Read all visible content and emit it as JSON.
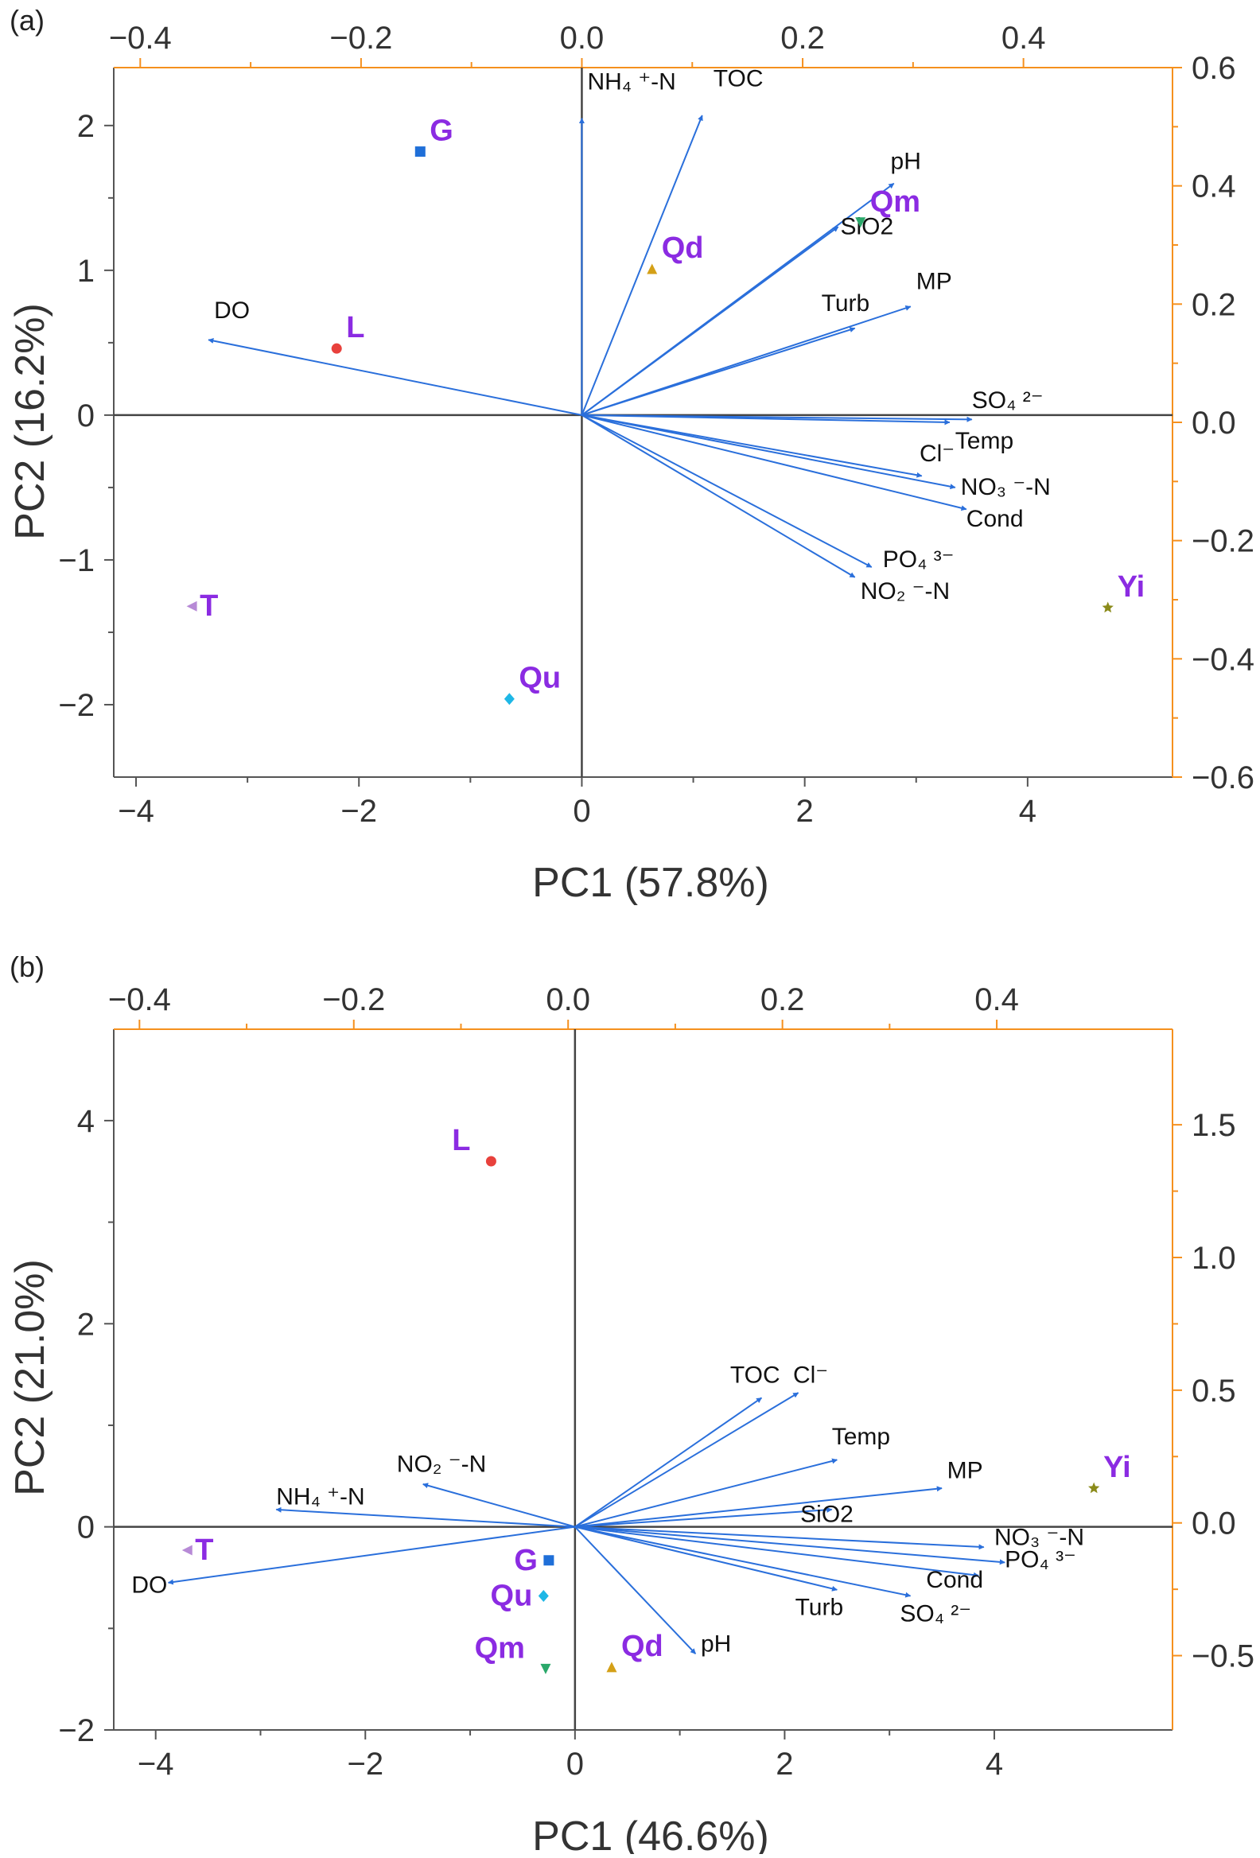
{
  "chart_data": [
    {
      "type": "scatter",
      "subtype": "pca-biplot",
      "panel_label": "(a)",
      "xlabel": "PC1 (57.8%)",
      "ylabel": "PC2 (16.2%)",
      "xlim": [
        -4.2,
        5.3
      ],
      "ylim": [
        -2.5,
        2.4
      ],
      "x_ticks": [
        -4,
        -2,
        0,
        2,
        4
      ],
      "y_ticks": [
        -2,
        -1,
        0,
        1,
        2
      ],
      "top_xlim": [
        -0.424,
        0.535
      ],
      "top_x_ticks": [
        -0.4,
        -0.2,
        0.0,
        0.2,
        0.4
      ],
      "top_x_tick_labels": [
        "−0.4",
        "−0.2",
        "0.0",
        "0.2",
        "0.4"
      ],
      "right_ylim": [
        -0.6,
        0.6
      ],
      "right_y_ticks": [
        -0.6,
        -0.4,
        -0.2,
        0.0,
        0.2,
        0.4,
        0.6
      ],
      "right_y_tick_labels": [
        "−0.6",
        "−0.4",
        "−0.2",
        "0.0",
        "0.2",
        "0.4",
        "0.6"
      ],
      "secondary_axis_color": "#f5901e",
      "vector_color": "#2a6fdb",
      "site_label_color": "#8b2be2",
      "sites": [
        {
          "name": "G",
          "x": -1.45,
          "y": 1.82,
          "marker": "square",
          "color": "#1f6fd8",
          "label_pos": "above-right"
        },
        {
          "name": "L",
          "x": -2.2,
          "y": 0.46,
          "marker": "circle",
          "color": "#e8413c",
          "label_pos": "above-right"
        },
        {
          "name": "Qd",
          "x": 0.63,
          "y": 1.01,
          "marker": "triangle-up",
          "color": "#d4a017",
          "label_pos": "above-right"
        },
        {
          "name": "Qm",
          "x": 2.5,
          "y": 1.33,
          "marker": "triangle-down",
          "color": "#2aa86a",
          "label_pos": "above-right"
        },
        {
          "name": "T",
          "x": -3.5,
          "y": -1.32,
          "marker": "triangle-left",
          "color": "#b78ad6",
          "label_pos": "right"
        },
        {
          "name": "Qu",
          "x": -0.65,
          "y": -1.96,
          "marker": "diamond",
          "color": "#1eb7e6",
          "label_pos": "above-right"
        },
        {
          "name": "Yi",
          "x": 4.72,
          "y": -1.33,
          "marker": "star",
          "color": "#8b8b1a",
          "label_pos": "above-right"
        }
      ],
      "loadings": [
        {
          "name": "NH₄ ⁺-N",
          "x": 0.0,
          "y": 2.05,
          "label_dx": 0.05,
          "label_dy": 0.2
        },
        {
          "name": "TOC",
          "x": 1.08,
          "y": 2.07,
          "label_dx": 0.1,
          "label_dy": 0.2
        },
        {
          "name": "pH",
          "x": 2.8,
          "y": 1.6,
          "label_dx": -0.03,
          "label_dy": 0.1
        },
        {
          "name": "SiO2",
          "x": 2.3,
          "y": 1.3,
          "label_dx": 0.02,
          "label_dy": -0.05
        },
        {
          "name": "MP",
          "x": 2.95,
          "y": 0.75,
          "label_dx": 0.05,
          "label_dy": 0.12
        },
        {
          "name": "Turb",
          "x": 2.45,
          "y": 0.6,
          "label_dx": -0.3,
          "label_dy": 0.12
        },
        {
          "name": "DO",
          "x": -3.35,
          "y": 0.52,
          "label_dx": 0.05,
          "label_dy": 0.15
        },
        {
          "name": "SO₄ ²⁻",
          "x": 3.5,
          "y": -0.03,
          "label_dx": 0.0,
          "label_dy": 0.08
        },
        {
          "name": "Temp",
          "x": 3.3,
          "y": -0.05,
          "label_dx": 0.05,
          "label_dy": -0.18
        },
        {
          "name": "Cl⁻",
          "x": 3.05,
          "y": -0.42,
          "label_dx": -0.02,
          "label_dy": 0.1
        },
        {
          "name": "NO₃ ⁻-N",
          "x": 3.35,
          "y": -0.5,
          "label_dx": 0.05,
          "label_dy": -0.05
        },
        {
          "name": "Cond",
          "x": 3.45,
          "y": -0.65,
          "label_dx": 0.0,
          "label_dy": -0.12
        },
        {
          "name": "PO₄ ³⁻",
          "x": 2.6,
          "y": -1.05,
          "label_dx": 0.1,
          "label_dy": 0.0
        },
        {
          "name": "NO₂ ⁻-N",
          "x": 2.45,
          "y": -1.12,
          "label_dx": 0.05,
          "label_dy": -0.15
        }
      ]
    },
    {
      "type": "scatter",
      "subtype": "pca-biplot",
      "panel_label": "(b)",
      "xlabel": "PC1 (46.6%)",
      "ylabel": "PC2 (21.0%)",
      "xlim": [
        -4.4,
        5.7
      ],
      "ylim": [
        -2.0,
        4.9
      ],
      "x_ticks": [
        -4,
        -2,
        0,
        2,
        4
      ],
      "y_ticks": [
        -2,
        0,
        2,
        4
      ],
      "top_xlim": [
        -0.424,
        0.564
      ],
      "top_x_ticks": [
        -0.4,
        -0.2,
        0.0,
        0.2,
        0.4
      ],
      "top_x_tick_labels": [
        "−0.4",
        "−0.2",
        "0.0",
        "0.2",
        "0.4"
      ],
      "right_ylim": [
        -0.78,
        1.86
      ],
      "right_y_ticks": [
        -0.5,
        0.0,
        0.5,
        1.0,
        1.5
      ],
      "right_y_tick_labels": [
        "−0.5",
        "0.0",
        "0.5",
        "1.0",
        "1.5"
      ],
      "secondary_axis_color": "#f5901e",
      "vector_color": "#2a6fdb",
      "site_label_color": "#8b2be2",
      "sites": [
        {
          "name": "L",
          "x": -0.8,
          "y": 3.6,
          "marker": "circle",
          "color": "#e8413c",
          "label_pos": "above-left"
        },
        {
          "name": "Yi",
          "x": 4.95,
          "y": 0.38,
          "marker": "star",
          "color": "#8b8b1a",
          "label_pos": "above-right"
        },
        {
          "name": "T",
          "x": -3.7,
          "y": -0.23,
          "marker": "triangle-left",
          "color": "#b78ad6",
          "label_pos": "right"
        },
        {
          "name": "G",
          "x": -0.25,
          "y": -0.33,
          "marker": "square",
          "color": "#1f6fd8",
          "label_pos": "left"
        },
        {
          "name": "Qu",
          "x": -0.3,
          "y": -0.68,
          "marker": "diamond",
          "color": "#1eb7e6",
          "label_pos": "left"
        },
        {
          "name": "Qm",
          "x": -0.28,
          "y": -1.4,
          "marker": "triangle-down",
          "color": "#2aa86a",
          "label_pos": "above-left"
        },
        {
          "name": "Qd",
          "x": 0.35,
          "y": -1.38,
          "marker": "triangle-up",
          "color": "#d4a017",
          "label_pos": "above-right"
        }
      ],
      "loadings": [
        {
          "name": "TOC",
          "x": 1.78,
          "y": 1.27,
          "label_dx": -0.3,
          "label_dy": 0.15
        },
        {
          "name": "Cl⁻",
          "x": 2.13,
          "y": 1.32,
          "label_dx": -0.05,
          "label_dy": 0.1
        },
        {
          "name": "Temp",
          "x": 2.5,
          "y": 0.66,
          "label_dx": -0.05,
          "label_dy": 0.15
        },
        {
          "name": "MP",
          "x": 3.5,
          "y": 0.38,
          "label_dx": 0.05,
          "label_dy": 0.1
        },
        {
          "name": "SiO2",
          "x": 2.45,
          "y": 0.17,
          "label_dx": -0.3,
          "label_dy": -0.12
        },
        {
          "name": "NH₄ ⁺-N",
          "x": -2.85,
          "y": 0.17,
          "label_dx": 0.0,
          "label_dy": 0.05
        },
        {
          "name": "NO₂ ⁻-N",
          "x": -1.45,
          "y": 0.42,
          "label_dx": -0.25,
          "label_dy": 0.12
        },
        {
          "name": "DO",
          "x": -3.88,
          "y": -0.55,
          "label_dx": -0.35,
          "label_dy": -0.1
        },
        {
          "name": "NO₃ ⁻-N",
          "x": 3.9,
          "y": -0.2,
          "label_dx": 0.1,
          "label_dy": 0.02
        },
        {
          "name": "PO₄ ³⁻",
          "x": 4.1,
          "y": -0.35,
          "label_dx": 0.0,
          "label_dy": -0.05
        },
        {
          "name": "Cond",
          "x": 3.85,
          "y": -0.48,
          "label_dx": -0.5,
          "label_dy": -0.12
        },
        {
          "name": "SO₄ ²⁻",
          "x": 3.2,
          "y": -0.68,
          "label_dx": -0.1,
          "label_dy": -0.25
        },
        {
          "name": "Turb",
          "x": 2.5,
          "y": -0.62,
          "label_dx": -0.4,
          "label_dy": -0.25
        },
        {
          "name": "pH",
          "x": 1.15,
          "y": -1.25,
          "label_dx": 0.05,
          "label_dy": 0.02
        }
      ]
    }
  ]
}
